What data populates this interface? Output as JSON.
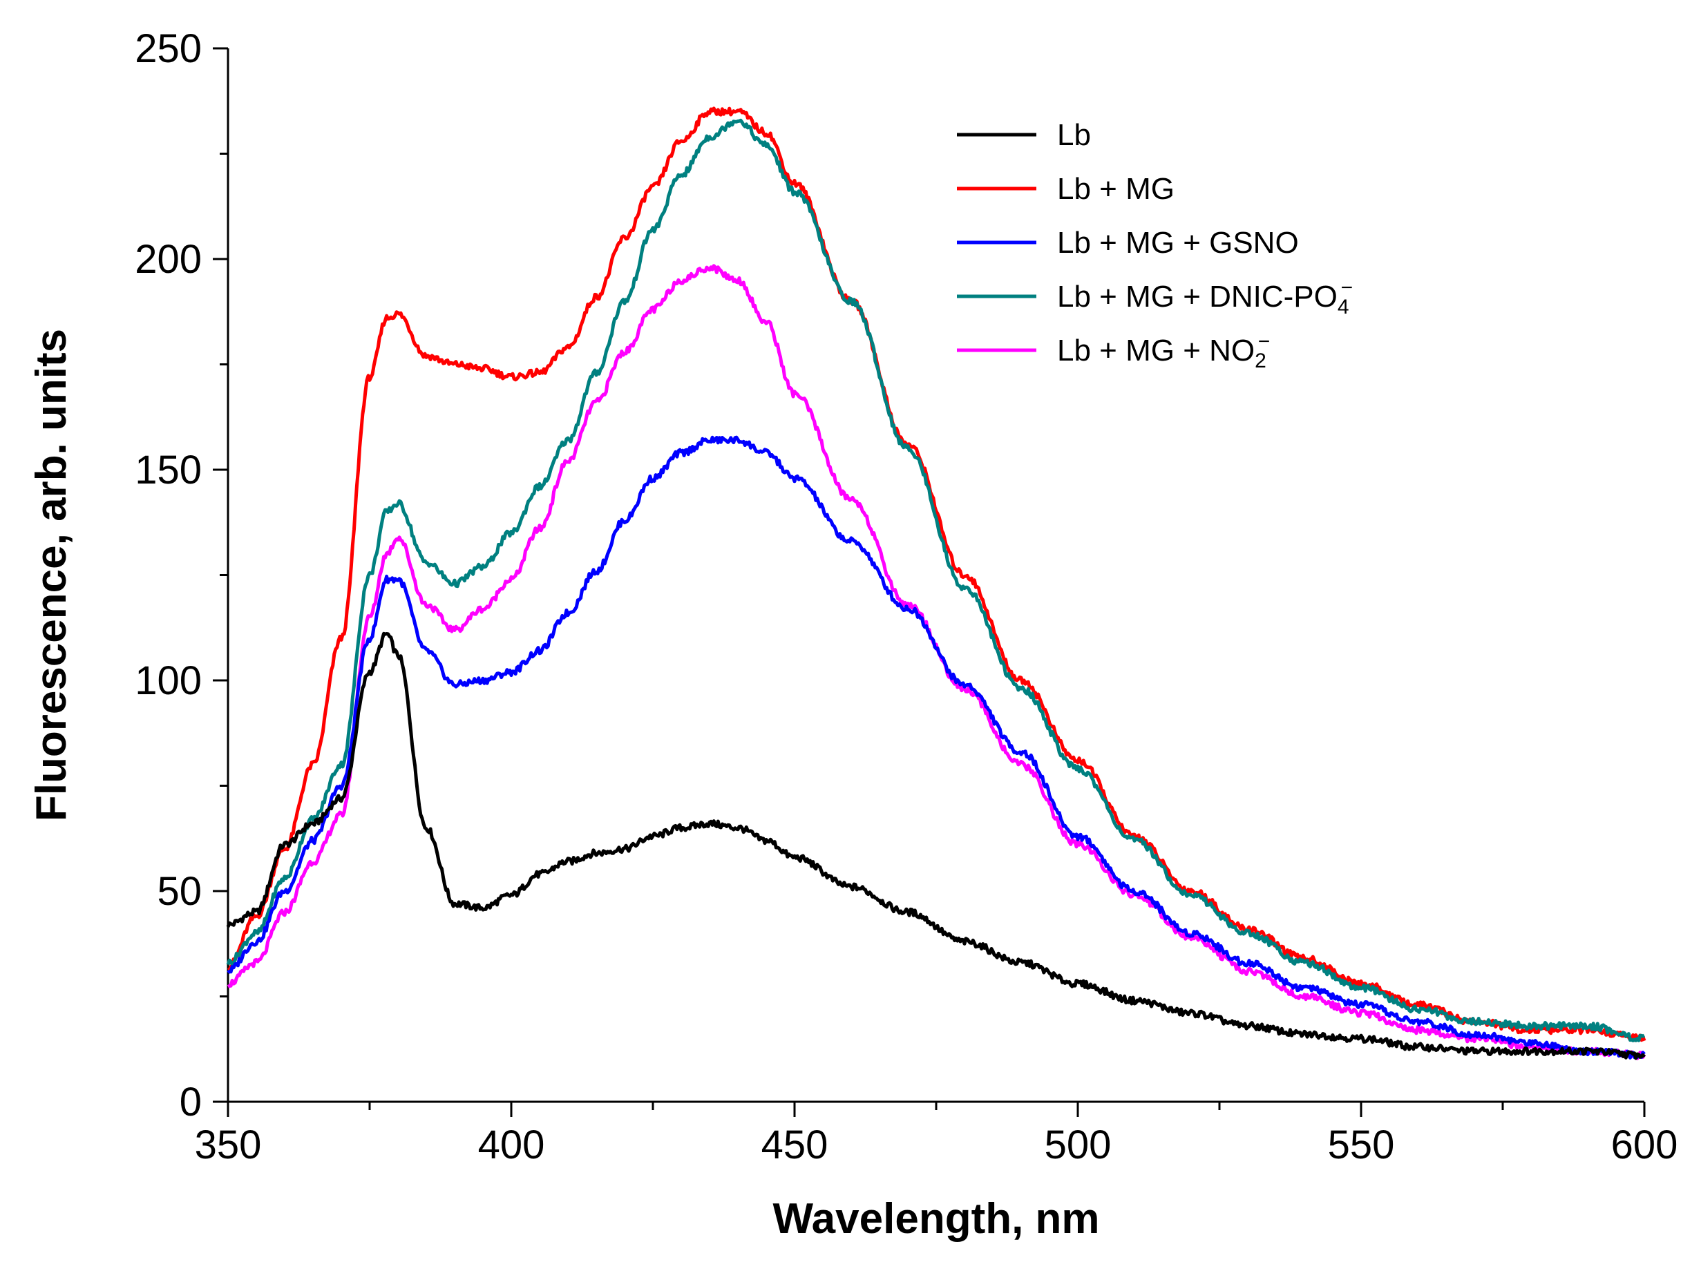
{
  "chart_data": {
    "type": "line",
    "title": "",
    "xlabel": "Wavelength, nm",
    "ylabel": "Fluorescence, arb. units",
    "xlim": [
      350,
      600
    ],
    "ylim": [
      0,
      250
    ],
    "x_ticks": [
      "350",
      "400",
      "450",
      "500",
      "550",
      "600"
    ],
    "x_tick_values": [
      350,
      400,
      450,
      500,
      550,
      600
    ],
    "y_ticks": [
      "0",
      "50",
      "100",
      "150",
      "200",
      "250"
    ],
    "y_tick_values": [
      0,
      50,
      100,
      150,
      200,
      250
    ],
    "grid": false,
    "legend_position": "top-right",
    "x": [
      350,
      355,
      360,
      365,
      370,
      375,
      378,
      380,
      385,
      390,
      395,
      400,
      405,
      410,
      415,
      420,
      425,
      430,
      435,
      440,
      445,
      450,
      460,
      470,
      480,
      490,
      500,
      510,
      520,
      530,
      540,
      550,
      560,
      570,
      580,
      590,
      600
    ],
    "series": [
      {
        "name": "Lb",
        "label_main": "Lb",
        "color": "#000000",
        "values": [
          42,
          45,
          61,
          66,
          72,
          102,
          111,
          106,
          65,
          47,
          46,
          49,
          54,
          57,
          59,
          60,
          63,
          65,
          66,
          65,
          62,
          58,
          51,
          45,
          38,
          33,
          28,
          24,
          21,
          18,
          16,
          15,
          13,
          12,
          12,
          12,
          11
        ]
      },
      {
        "name": "Lb + MG",
        "label_main": "Lb + MG",
        "color": "#ff0000",
        "values": [
          32,
          44,
          60,
          80,
          110,
          172,
          186,
          187,
          177,
          175,
          174,
          172,
          173,
          179,
          191,
          205,
          217,
          228,
          235,
          235,
          230,
          218,
          190,
          156,
          125,
          100,
          81,
          63,
          50,
          41,
          34,
          28,
          23,
          19,
          17,
          17,
          15
        ]
      },
      {
        "name": "Lb + MG + GSNO",
        "label_main": "Lb + MG + GSNO",
        "color": "#0000ff",
        "values": [
          31,
          38,
          50,
          62,
          75,
          110,
          124,
          124,
          107,
          99,
          100,
          102,
          107,
          116,
          126,
          138,
          148,
          154,
          157,
          157,
          154,
          148,
          133,
          117,
          99,
          83,
          63,
          50,
          40,
          33,
          27,
          23,
          19,
          16,
          14,
          12,
          11
        ]
      },
      {
        "name": "Lb + MG + DNIC-PO4−",
        "label_main": "Lb + MG + DNIC-PO",
        "label_sub": "4",
        "label_sup": "−",
        "color": "#008080",
        "values": [
          33,
          40,
          53,
          67,
          80,
          125,
          140,
          142,
          128,
          123,
          127,
          135,
          146,
          157,
          173,
          190,
          207,
          220,
          229,
          233,
          227,
          216,
          190,
          155,
          122,
          98,
          79,
          62,
          49,
          40,
          33,
          27,
          22,
          19,
          18,
          18,
          15
        ]
      },
      {
        "name": "Lb + MG + NO2−",
        "label_main": "Lb + MG + NO",
        "label_sub": "2",
        "label_sup": "−",
        "color": "#ff00ff",
        "values": [
          28,
          33,
          45,
          57,
          68,
          115,
          130,
          134,
          118,
          112,
          117,
          124,
          136,
          152,
          166,
          178,
          188,
          195,
          198,
          195,
          185,
          168,
          143,
          118,
          98,
          80,
          61,
          49,
          39,
          31,
          25,
          21,
          17,
          15,
          13,
          12,
          11
        ]
      }
    ]
  }
}
